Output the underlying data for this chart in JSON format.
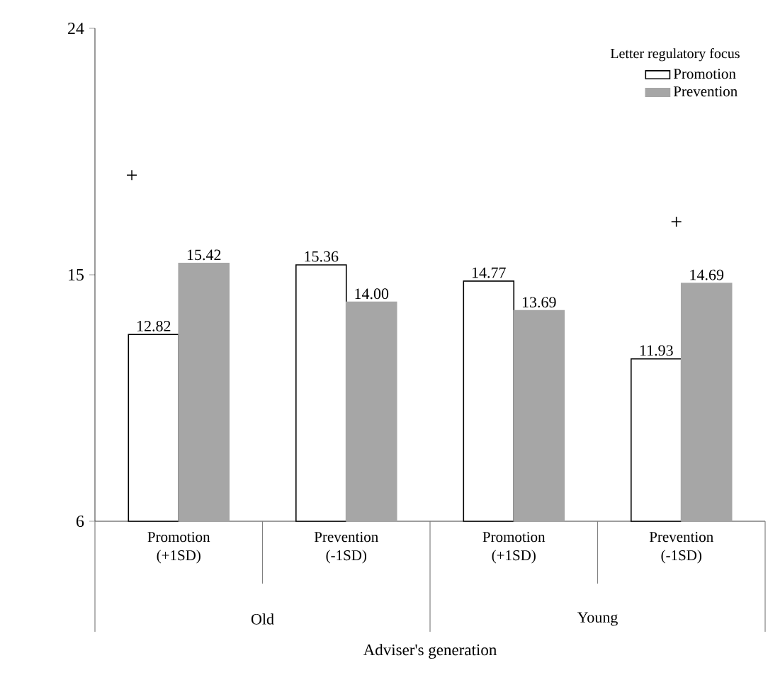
{
  "chart_data": {
    "type": "bar",
    "categories": [
      "Promotion (+1SD)",
      "Prevention (-1SD)",
      "Promotion (+1SD)",
      "Prevention (-1SD)"
    ],
    "series": [
      {
        "name": "Promotion",
        "color": "#ffffff",
        "values": [
          12.82,
          15.36,
          14.77,
          11.93
        ],
        "value_labels": [
          "12.82",
          "15.36",
          "14.77",
          "11.93"
        ]
      },
      {
        "name": "Prevention",
        "color": "#a6a6a6",
        "values": [
          15.42,
          14.0,
          13.69,
          14.69
        ],
        "value_labels": [
          "15.42",
          "14.00",
          "13.69",
          "14.69"
        ]
      }
    ],
    "xlabel": "Adviser's generation",
    "legend_title": "Letter regulatory focus",
    "legend": "top right",
    "ylim": [
      6,
      24
    ],
    "yticks": [
      6,
      15,
      24
    ],
    "grid": false,
    "annotations": [
      "+",
      "+",
      "Old",
      "Young"
    ]
  }
}
